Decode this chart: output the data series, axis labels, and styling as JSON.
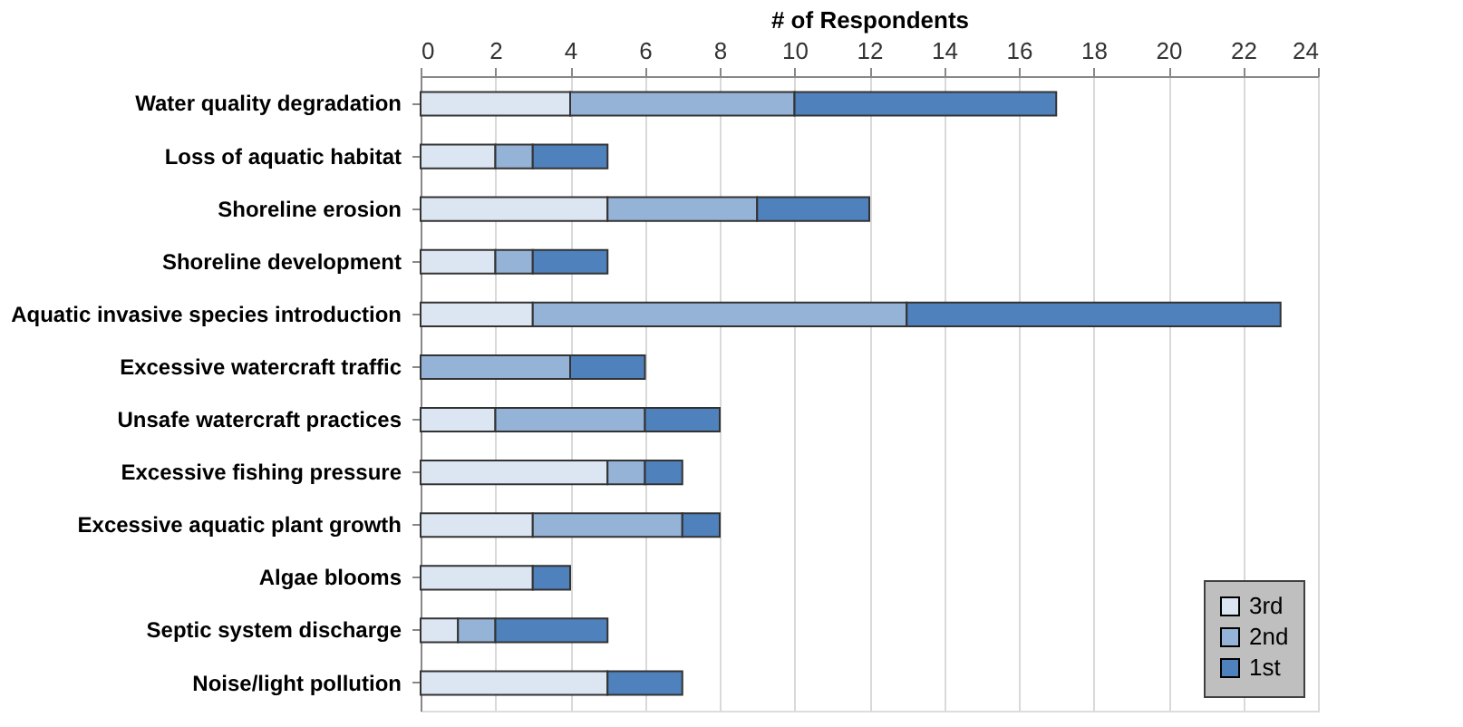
{
  "chart_data": {
    "type": "bar",
    "orientation": "horizontal",
    "stacked": true,
    "xlabel": "# of Respondents",
    "categories": [
      "Water quality degradation",
      "Loss of aquatic habitat",
      "Shoreline erosion",
      "Shoreline development",
      "Aquatic invasive species introduction",
      "Excessive watercraft traffic",
      "Unsafe watercraft practices",
      "Excessive fishing pressure",
      "Excessive aquatic plant growth",
      "Algae blooms",
      "Septic system discharge",
      "Noise/light pollution"
    ],
    "series": [
      {
        "name": "3rd",
        "color": "#dce6f2",
        "values": [
          4,
          2,
          5,
          2,
          3,
          0,
          2,
          5,
          3,
          3,
          1,
          5
        ]
      },
      {
        "name": "2nd",
        "color": "#95b3d7",
        "values": [
          6,
          1,
          4,
          1,
          10,
          4,
          4,
          1,
          4,
          0,
          1,
          0
        ]
      },
      {
        "name": "1st",
        "color": "#4f81bd",
        "values": [
          7,
          2,
          3,
          2,
          10,
          2,
          2,
          1,
          1,
          1,
          3,
          2
        ]
      }
    ],
    "xlim": [
      0,
      24
    ],
    "xticks": [
      0,
      2,
      4,
      6,
      8,
      10,
      12,
      14,
      16,
      18,
      20,
      22,
      24
    ],
    "grid": "x",
    "legend": "bottom right"
  }
}
